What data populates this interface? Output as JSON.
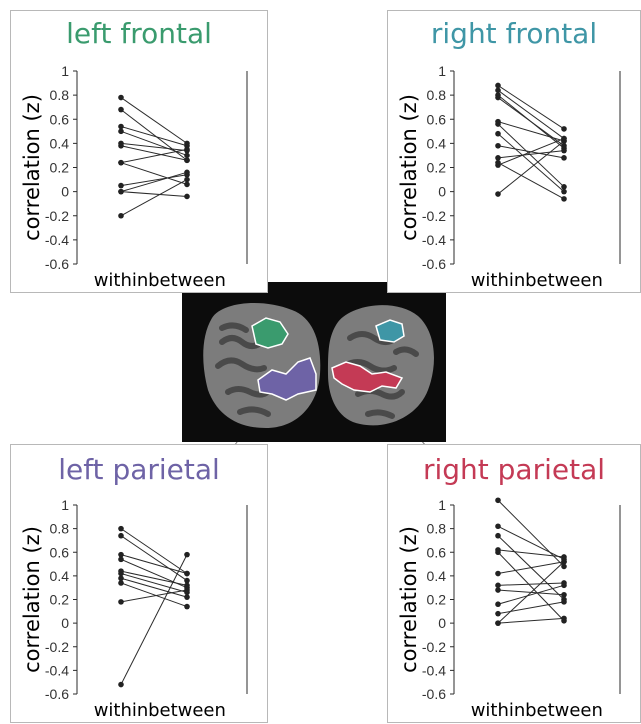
{
  "colors": {
    "left_frontal": "#3a9b6e",
    "right_frontal": "#3f96a6",
    "left_parietal": "#6e63a6",
    "right_parietal": "#c43a55",
    "brain_background": "#0c0c0c",
    "line": "#2b2b2b"
  },
  "chart_data": [
    {
      "type": "line",
      "title": "left frontal",
      "xlabel": "",
      "ylabel": "correlation (z)",
      "categories": [
        "within",
        "between"
      ],
      "ylim": [
        -0.6,
        1
      ],
      "yticks": [
        "1",
        "0.8",
        "0.6",
        "0.4",
        "0.2",
        "0",
        "-0.2",
        "-0.4",
        "-0.6"
      ],
      "pairs": [
        [
          0.78,
          0.4
        ],
        [
          0.68,
          0.26
        ],
        [
          0.54,
          0.38
        ],
        [
          0.5,
          0.3
        ],
        [
          0.4,
          0.34
        ],
        [
          0.38,
          0.26
        ],
        [
          0.24,
          0.35
        ],
        [
          0.05,
          0.14
        ],
        [
          0.0,
          0.16
        ],
        [
          -0.2,
          0.1
        ],
        [
          0.0,
          -0.04
        ],
        [
          0.24,
          0.06
        ]
      ]
    },
    {
      "type": "line",
      "title": "right frontal",
      "xlabel": "",
      "ylabel": "correlation (z)",
      "categories": [
        "within",
        "between"
      ],
      "ylim": [
        -0.6,
        1
      ],
      "yticks": [
        "1",
        "0.8",
        "0.6",
        "0.4",
        "0.2",
        "0",
        "-0.2",
        "-0.4",
        "-0.6"
      ],
      "pairs": [
        [
          0.88,
          0.52
        ],
        [
          0.84,
          0.44
        ],
        [
          0.8,
          0.36
        ],
        [
          0.78,
          0.38
        ],
        [
          0.58,
          0.42
        ],
        [
          0.56,
          0.04
        ],
        [
          0.48,
          0.0
        ],
        [
          0.38,
          0.28
        ],
        [
          0.28,
          0.34
        ],
        [
          0.24,
          -0.06
        ],
        [
          0.22,
          0.44
        ],
        [
          -0.02,
          0.42
        ]
      ]
    },
    {
      "type": "line",
      "title": "left parietal",
      "xlabel": "",
      "ylabel": "correlation (z)",
      "categories": [
        "within",
        "between"
      ],
      "ylim": [
        -0.6,
        1
      ],
      "yticks": [
        "1",
        "0.8",
        "0.6",
        "0.4",
        "0.2",
        "0",
        "-0.2",
        "-0.4",
        "-0.6"
      ],
      "pairs": [
        [
          0.8,
          0.42
        ],
        [
          0.74,
          0.36
        ],
        [
          0.58,
          0.42
        ],
        [
          0.54,
          0.3
        ],
        [
          0.44,
          0.32
        ],
        [
          0.42,
          0.26
        ],
        [
          0.38,
          0.22
        ],
        [
          0.34,
          0.14
        ],
        [
          0.18,
          0.28
        ],
        [
          -0.52,
          0.58
        ]
      ]
    },
    {
      "type": "line",
      "title": "right parietal",
      "xlabel": "",
      "ylabel": "correlation (z)",
      "categories": [
        "within",
        "between"
      ],
      "ylim": [
        -0.6,
        1
      ],
      "yticks": [
        "1",
        "0.8",
        "0.6",
        "0.4",
        "0.2",
        "0",
        "-0.2",
        "-0.4",
        "-0.6"
      ],
      "pairs": [
        [
          1.04,
          0.48
        ],
        [
          0.82,
          0.54
        ],
        [
          0.74,
          0.2
        ],
        [
          0.62,
          0.56
        ],
        [
          0.6,
          0.02
        ],
        [
          0.42,
          0.52
        ],
        [
          0.32,
          0.34
        ],
        [
          0.28,
          0.24
        ],
        [
          0.16,
          0.32
        ],
        [
          0.08,
          0.18
        ],
        [
          0.0,
          0.52
        ],
        [
          0.0,
          0.04
        ]
      ]
    }
  ]
}
